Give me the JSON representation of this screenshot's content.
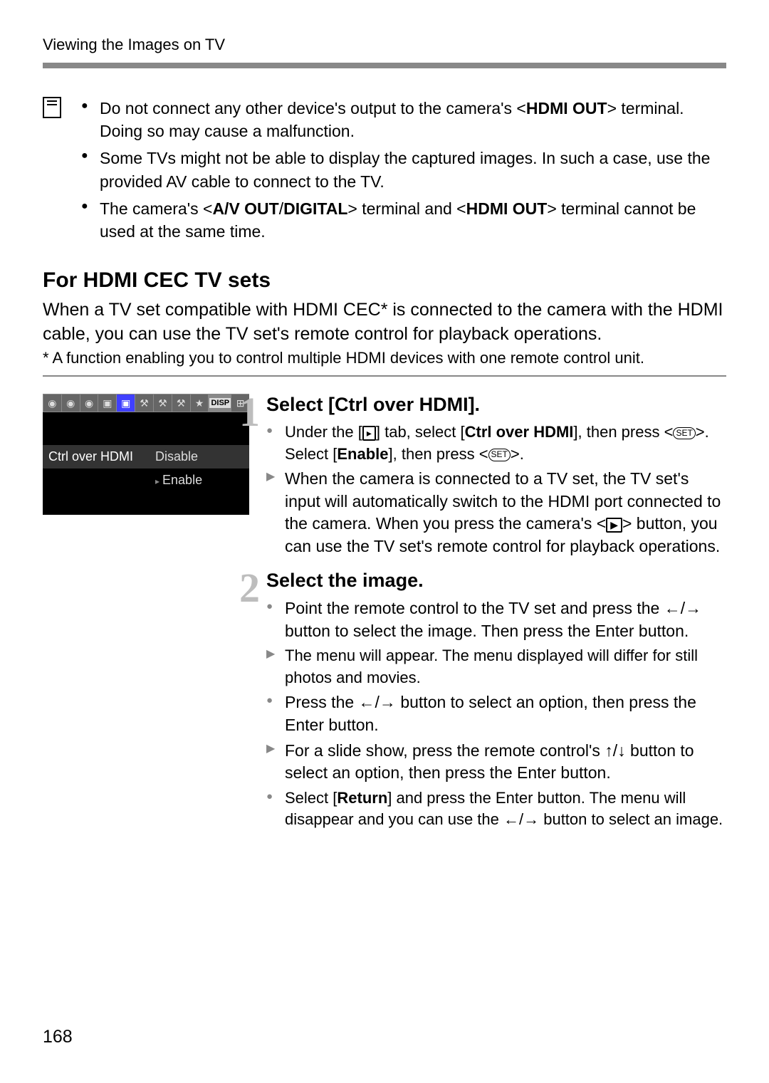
{
  "header": {
    "title": "Viewing the Images on TV"
  },
  "notes": {
    "item1_pre": "Do not connect any other device's output to the camera's <",
    "item1_strong": "HDMI OUT",
    "item1_post": "> terminal. Doing so may cause a malfunction.",
    "item2": "Some TVs might not be able to display the captured images. In such a case, use the provided AV cable to connect to the TV.",
    "item3_pre": "The camera's <",
    "item3_s1": "A/V OUT",
    "item3_mid": "/",
    "item3_s2": "DIGITAL",
    "item3_mid2": "> terminal and <",
    "item3_s3": "HDMI OUT",
    "item3_post": "> terminal cannot be used at the same time."
  },
  "section": {
    "heading": "For HDMI CEC TV sets",
    "body": "When a TV set compatible with HDMI CEC* is connected to the camera with the HDMI cable, you can use the TV set's remote control for playback operations.",
    "footnote": "* A function enabling you to control multiple HDMI devices with one remote control unit."
  },
  "menu": {
    "disp_badge": "DISP",
    "row_label": "Ctrl over HDMI",
    "row_val": "Disable",
    "row_sub": "Enable"
  },
  "steps": {
    "s1": {
      "num": "1",
      "title": "Select [Ctrl over HDMI].",
      "b1_pre": "Under the [",
      "b1_mid": "] tab, select [",
      "b1_strong": "Ctrl over HDMI",
      "b1_mid2": "], then press <",
      "b1_set": "SET",
      "b1_mid3": ">. Select [",
      "b1_strong2": "Enable",
      "b1_mid4": "], then press <",
      "b1_post": ">.",
      "a1_pre": "When the camera is connected to a TV set, the TV set's input will automatically switch to the HDMI port connected to the camera. When you press the camera's <",
      "a1_post": "> button, you can use the TV set's remote control for playback operations."
    },
    "s2": {
      "num": "2",
      "title": "Select the image.",
      "b1": "Point the remote control to the TV set and press the ←/→ button to select the image. Then press the Enter button.",
      "a1": "The menu will appear. The menu displayed will differ for still photos and movies.",
      "b2": "Press the ←/→ button to select an option, then press the Enter button.",
      "a2": "For a slide show, press the remote control's ↑/↓ button to select an option, then press the Enter button.",
      "b3_pre": "Select [",
      "b3_strong": "Return",
      "b3_post": "] and press the Enter button. The menu will disappear and you can use the ←/→ button to select an image."
    }
  },
  "page_number": "168",
  "colors": {
    "divider": "#888888",
    "step_num": "#bdbdbd",
    "bg": "#ffffff"
  }
}
